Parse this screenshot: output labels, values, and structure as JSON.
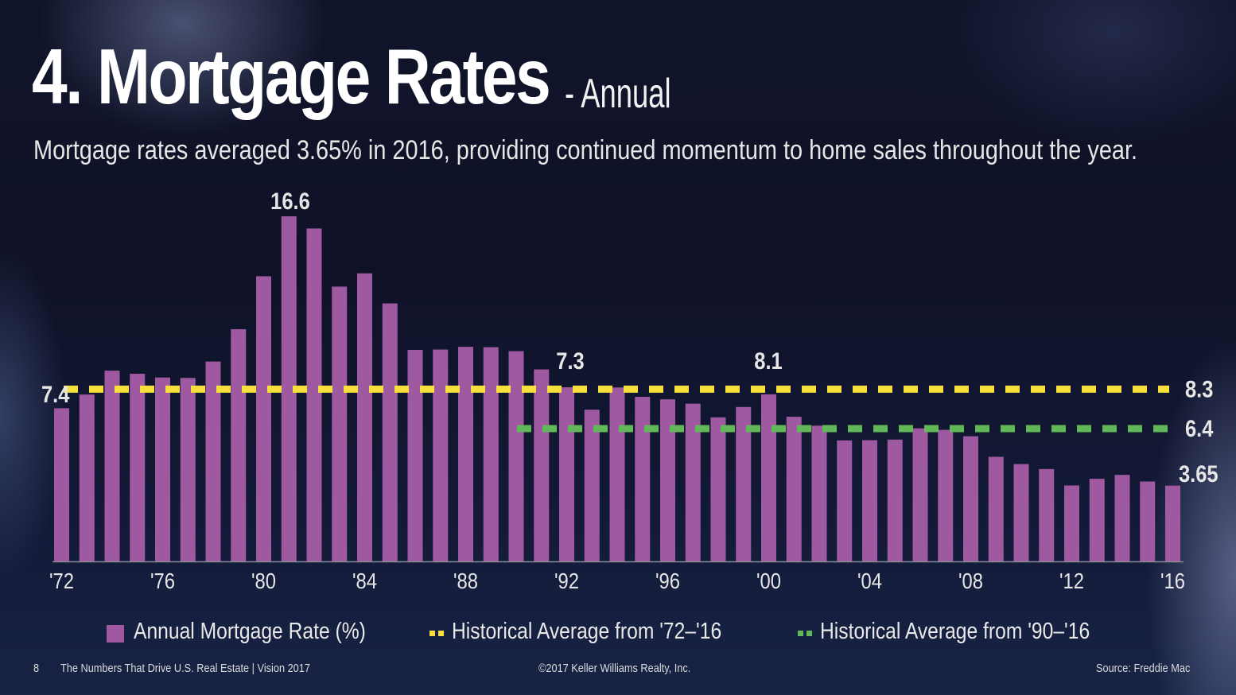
{
  "header": {
    "title": "4. Mortgage Rates",
    "title_suffix": "- Annual",
    "subtitle": "Mortgage rates averaged 3.65% in 2016, providing continued momentum to home sales throughout the year."
  },
  "chart_data": {
    "type": "bar",
    "title": "4. Mortgage Rates - Annual",
    "xlabel": "",
    "ylabel": "Annual Mortgage Rate (%)",
    "ylim": [
      0,
      17
    ],
    "grid": false,
    "years": [
      1972,
      1973,
      1974,
      1975,
      1976,
      1977,
      1978,
      1979,
      1980,
      1981,
      1982,
      1983,
      1984,
      1985,
      1986,
      1987,
      1988,
      1989,
      1990,
      1991,
      1992,
      1993,
      1994,
      1995,
      1996,
      1997,
      1998,
      1999,
      2000,
      2001,
      2002,
      2003,
      2004,
      2005,
      2006,
      2007,
      2008,
      2009,
      2010,
      2011,
      2012,
      2013,
      2014,
      2015,
      2016
    ],
    "x_tick_labels": [
      "'72",
      "'76",
      "'80",
      "'84",
      "'88",
      "'92",
      "'96",
      "'00",
      "'04",
      "'08",
      "'12",
      "'16"
    ],
    "x_tick_years": [
      1972,
      1976,
      1980,
      1984,
      1988,
      1992,
      1996,
      2000,
      2004,
      2008,
      2012,
      2016
    ],
    "series": [
      {
        "name": "Annual Mortgage Rate (%)",
        "color": "#9e59a1",
        "values": [
          7.38,
          8.04,
          9.19,
          9.04,
          8.86,
          8.84,
          9.63,
          11.19,
          13.74,
          16.63,
          16.04,
          13.24,
          13.88,
          12.43,
          10.19,
          10.21,
          10.34,
          10.32,
          10.13,
          9.25,
          8.39,
          7.31,
          8.38,
          7.93,
          7.81,
          7.6,
          6.94,
          7.44,
          8.05,
          6.97,
          6.54,
          5.83,
          5.84,
          5.87,
          6.41,
          6.34,
          6.03,
          5.04,
          4.69,
          4.45,
          3.66,
          3.98,
          4.17,
          3.85,
          3.65
        ]
      }
    ],
    "reference_lines": [
      {
        "name": "Historical Average from '72–'16",
        "value": 8.3,
        "label": "8.3",
        "from_year": 1972,
        "to_year": 2016,
        "color": "#f7e03c"
      },
      {
        "name": "Historical Average from '90–'16",
        "value": 6.4,
        "label": "6.4",
        "from_year": 1990,
        "to_year": 2016,
        "color": "#62b858"
      }
    ],
    "annotations": [
      {
        "year": 1972,
        "text": "7.4"
      },
      {
        "year": 1981,
        "text": "16.6"
      },
      {
        "year": 1993,
        "text": "7.3"
      },
      {
        "year": 2000,
        "text": "8.1"
      },
      {
        "year": 2016,
        "text": "3.65"
      }
    ],
    "legend_position": "bottom"
  },
  "legend": {
    "items": [
      {
        "label": "Annual Mortgage Rate (%)",
        "color": "#9e59a1"
      },
      {
        "label": "Historical Average from '72–'16",
        "color": "#f7e03c"
      },
      {
        "label": "Historical Average from '90–'16",
        "color": "#62b858"
      }
    ]
  },
  "footer": {
    "page_number": "8",
    "publication": "The Numbers That Drive U.S. Real Estate | Vision 2017",
    "copyright": "©2017 Keller Williams Realty, Inc.",
    "source": "Source: Freddie Mac"
  }
}
